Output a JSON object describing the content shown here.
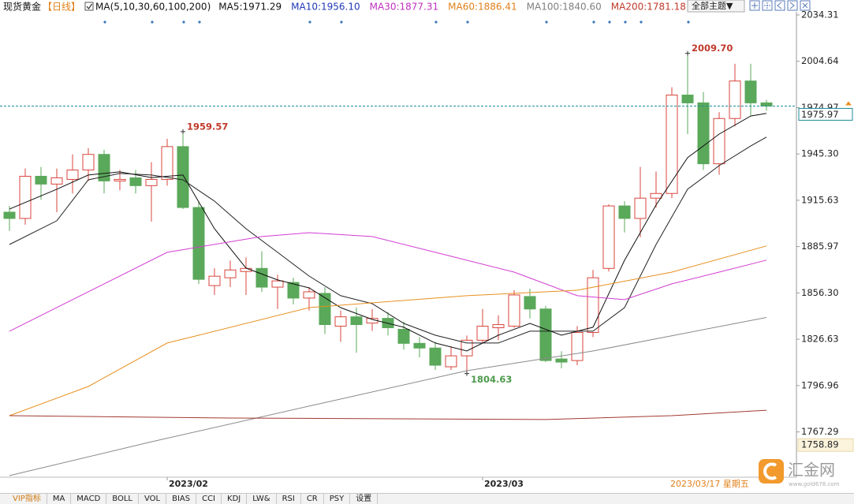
{
  "chart_data": {
    "type": "candlestick",
    "title": "现货黄金",
    "period": "【日线】",
    "legend_title": "MA(5,10,30,60,100,200)",
    "categories": [
      null,
      null,
      null,
      null,
      null,
      null,
      null,
      null,
      null,
      null,
      "2023/02",
      null,
      null,
      null,
      null,
      null,
      null,
      null,
      null,
      null,
      null,
      null,
      null,
      null,
      null,
      null,
      null,
      null,
      null,
      null,
      "2023/03",
      null,
      null,
      null,
      null,
      null,
      null,
      null,
      null,
      null,
      null,
      null,
      null,
      null,
      null,
      null,
      null,
      null,
      null
    ],
    "open": [
      1908,
      1904,
      1931,
      1926,
      1929,
      1935,
      1945,
      1928,
      1930,
      1925,
      1929,
      1950,
      1911,
      1861,
      1866,
      1870,
      1872,
      1860,
      1863,
      1853,
      1856,
      1835,
      1841,
      1837,
      1840,
      1833,
      1824,
      1821,
      1809,
      1816,
      1826,
      1834,
      1835,
      1854,
      1846,
      1814,
      1813,
      1831,
      1872,
      1912,
      1904,
      1917,
      1920,
      1983,
      1978,
      1939,
      1968,
      1992,
      1978
    ],
    "high": [
      1912,
      1936,
      1937,
      1936,
      1945,
      1949,
      1948,
      1935,
      1935,
      1940,
      1955,
      1959.57,
      1915,
      1872,
      1877,
      1879,
      1883,
      1868,
      1866,
      1860,
      1860,
      1845,
      1847,
      1846,
      1844,
      1838,
      1828,
      1825,
      1822,
      1829,
      1846,
      1842,
      1858,
      1859,
      1848,
      1819,
      1835,
      1871,
      1913,
      1915,
      1937,
      1934,
      1988,
      2009.7,
      1985,
      1972,
      2003,
      2003,
      1980
    ],
    "low": [
      1896,
      1900,
      1916,
      1908,
      1920,
      1928,
      1920,
      1922,
      1920,
      1902,
      1925,
      1910,
      1862,
      1855,
      1860,
      1855,
      1857,
      1846,
      1849,
      1845,
      1830,
      1825,
      1818,
      1832,
      1829,
      1820,
      1815,
      1807,
      1807,
      1804.63,
      1824,
      1826,
      1834,
      1840,
      1812,
      1808,
      1810,
      1828,
      1870,
      1895,
      1892,
      1911,
      1917,
      1958,
      1935,
      1932,
      1963,
      1970,
      1973
    ],
    "close": [
      1904,
      1931,
      1926,
      1930,
      1935,
      1945,
      1928,
      1929,
      1925,
      1929,
      1950,
      1911,
      1865,
      1867,
      1871,
      1872,
      1860,
      1864,
      1853,
      1857,
      1836,
      1841,
      1836,
      1840,
      1834,
      1824,
      1821,
      1810,
      1816,
      1826,
      1835,
      1836,
      1855,
      1846,
      1813,
      1812,
      1831,
      1866,
      1912,
      1904,
      1917,
      1920,
      1983,
      1978,
      1939,
      1968,
      1992,
      1978,
      1975.97
    ],
    "up_color": "#d8463c",
    "down_color": "#5aa85a",
    "series": [
      {
        "label": "MA5:1971.29",
        "color": "#111111",
        "legend_color": "#111111",
        "x": [
          0,
          3,
          5,
          7,
          9,
          11,
          13,
          15,
          17,
          19,
          21,
          23,
          25,
          27,
          29,
          31,
          33,
          35,
          37,
          39,
          41,
          43,
          45,
          47,
          48
        ],
        "values": [
          1910.0,
          1922.7,
          1931.8,
          1933.8,
          1930.2,
          1931.8,
          1897.4,
          1872.2,
          1864.6,
          1859.5,
          1846.9,
          1839.3,
          1834.3,
          1824.2,
          1819.1,
          1829.2,
          1836.8,
          1829.2,
          1834.3,
          1877.2,
          1912.6,
          1942.9,
          1958.0,
          1969.6,
          1971.29
        ]
      },
      {
        "label": "MA10:1956.10",
        "color": "#222222",
        "legend_color": "#2038b8",
        "x": [
          0,
          3,
          5,
          7,
          9,
          11,
          13,
          15,
          17,
          19,
          21,
          23,
          25,
          27,
          29,
          31,
          33,
          35,
          37,
          39,
          41,
          43,
          45,
          47,
          48
        ],
        "values": [
          1887.3,
          1902.5,
          1928.7,
          1932.8,
          1931.8,
          1928.7,
          1915.1,
          1897.4,
          1882.3,
          1867.1,
          1854.5,
          1849.4,
          1836.8,
          1829.2,
          1824.2,
          1824.2,
          1831.8,
          1831.8,
          1831.8,
          1846.9,
          1887.3,
          1922.7,
          1937.8,
          1950.4,
          1956.1
        ]
      },
      {
        "label": "MA30:1877.31",
        "color": "#d23ed2",
        "legend_color": "#c030c0",
        "x": [
          0,
          10,
          16,
          19,
          23,
          27,
          32,
          36,
          39,
          42,
          45,
          48
        ],
        "values": [
          1831.8,
          1882.3,
          1892.4,
          1894.9,
          1892.4,
          1882.3,
          1869.6,
          1854.5,
          1852.0,
          1862.1,
          1869.6,
          1877.31
        ]
      },
      {
        "label": "MA60:1886.41",
        "color": "#e8901f",
        "legend_color": "#e0801a",
        "x": [
          0,
          5,
          10,
          12,
          19,
          29,
          36,
          42,
          48
        ],
        "values": [
          1777.7,
          1796.4,
          1824.2,
          1829.2,
          1846.9,
          1854.5,
          1858.0,
          1869.6,
          1886.41
        ]
      },
      {
        "label": "MA100:1840.60",
        "color": "#8a8a8a",
        "legend_color": "#808080",
        "x": [
          0,
          9,
          19,
          29,
          37,
          48
        ],
        "values": [
          1739.3,
          1761.0,
          1783.8,
          1806.5,
          1819.1,
          1840.6
        ]
      },
      {
        "label": "MA200:1781.18",
        "color": "#a33a30",
        "legend_color": "#c03a2b",
        "x": [
          0,
          14,
          34,
          42,
          48
        ],
        "values": [
          1777.7,
          1776.2,
          1775.2,
          1777.7,
          1781.18
        ]
      }
    ],
    "ylim": [
      1738.3,
      2036.3
    ],
    "yticks": [
      2034.31,
      2004.64,
      1974.97,
      {
        "value": 1945.3,
        "label": "1945.30"
      },
      1915.63,
      1885.97,
      {
        "value": 1856.3,
        "label": "1856.30"
      },
      1826.63,
      1796.96,
      1767.29
    ],
    "last_price": 1975.97,
    "cursor_price": 1758.89,
    "cursor_date": "2023/03/17 星期五",
    "annotations": [
      {
        "index": 43,
        "value": 2009.7,
        "label": "2009.70"
      },
      {
        "index": 11,
        "value": 1959.57,
        "label": "1959.57"
      },
      {
        "index": 29,
        "value": 1804.63,
        "label": "1804.63"
      }
    ]
  },
  "toolbar": {
    "theme_button": "全部主题▼"
  },
  "tabs": [
    "VIP指标",
    "MA",
    "MACD",
    "BOLL",
    "VOL",
    "BIAS",
    "CCI",
    "KDJ",
    "LW&",
    "RSI",
    "CR",
    "PSY",
    "设置"
  ],
  "logo": {
    "name": "汇金网",
    "url": "www.gold678.com"
  }
}
